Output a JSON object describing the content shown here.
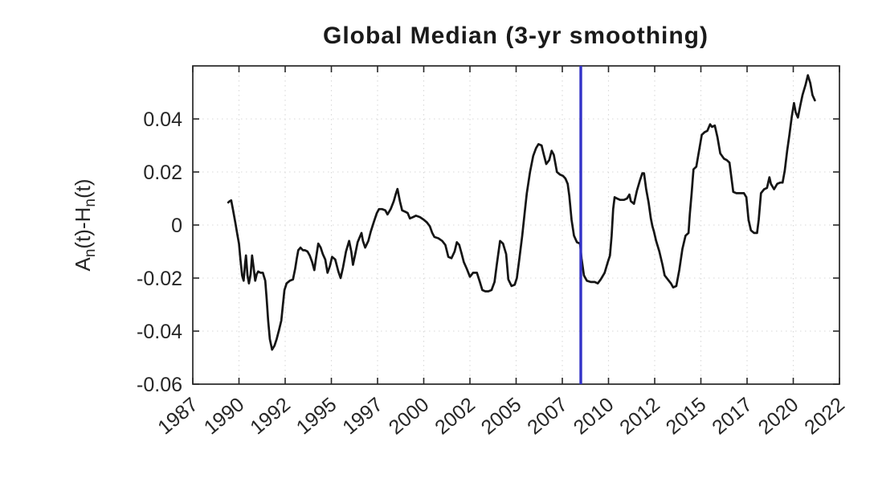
{
  "figure": {
    "background": "#ffffff"
  },
  "chart_data": {
    "type": "line",
    "title": "Global Median (3-yr smoothing)",
    "xlabel": "",
    "ylabel": "An(t)-Hn(t)",
    "ylabel_segments": [
      {
        "t": "A",
        "sub": false
      },
      {
        "t": "n",
        "sub": true
      },
      {
        "t": "(t)-H",
        "sub": false
      },
      {
        "t": "n",
        "sub": true
      },
      {
        "t": "(t)",
        "sub": false
      }
    ],
    "xlim": [
      1987,
      2022
    ],
    "ylim": [
      -0.06,
      0.06
    ],
    "grid": true,
    "x_ticks": {
      "values": [
        1987,
        1989.5,
        1992,
        1994.5,
        1997,
        1999.5,
        2002,
        2004.5,
        2007,
        2009.5,
        2012,
        2014.5,
        2017,
        2019.5,
        2022
      ],
      "labels": [
        "1987",
        "1990",
        "1992",
        "1995",
        "1997",
        "2000",
        "2002",
        "2005",
        "2007",
        "2010",
        "2012",
        "2015",
        "2017",
        "2020",
        "2022"
      ]
    },
    "y_ticks": {
      "values": [
        0.04,
        0.02,
        0,
        -0.02,
        -0.04,
        -0.06
      ],
      "labels": [
        "0.04",
        "0.02",
        "0",
        "-0.02",
        "-0.04",
        "-0.06"
      ]
    },
    "vline": {
      "x": 2008,
      "color": "#3232c8"
    },
    "series": [
      {
        "name": "global-median-3yr-smoothed",
        "color": "#151515",
        "points": [
          [
            1988.92,
            0.0085
          ],
          [
            1989.0,
            0.009
          ],
          [
            1989.08,
            0.0093
          ],
          [
            1989.17,
            0.006
          ],
          [
            1989.3,
            0.001
          ],
          [
            1989.42,
            -0.004
          ],
          [
            1989.5,
            -0.007
          ],
          [
            1989.58,
            -0.013
          ],
          [
            1989.67,
            -0.019
          ],
          [
            1989.75,
            -0.021
          ],
          [
            1989.83,
            -0.0145
          ],
          [
            1989.88,
            -0.0115
          ],
          [
            1989.96,
            -0.019
          ],
          [
            1990.04,
            -0.022
          ],
          [
            1990.13,
            -0.0185
          ],
          [
            1990.21,
            -0.0115
          ],
          [
            1990.29,
            -0.016
          ],
          [
            1990.38,
            -0.021
          ],
          [
            1990.46,
            -0.0185
          ],
          [
            1990.54,
            -0.0175
          ],
          [
            1990.67,
            -0.018
          ],
          [
            1990.79,
            -0.018
          ],
          [
            1990.92,
            -0.021
          ],
          [
            1991.0,
            -0.028
          ],
          [
            1991.08,
            -0.036
          ],
          [
            1991.17,
            -0.043
          ],
          [
            1991.29,
            -0.047
          ],
          [
            1991.42,
            -0.0455
          ],
          [
            1991.54,
            -0.043
          ],
          [
            1991.67,
            -0.0395
          ],
          [
            1991.79,
            -0.036
          ],
          [
            1991.88,
            -0.03
          ],
          [
            1991.96,
            -0.0245
          ],
          [
            1992.08,
            -0.022
          ],
          [
            1992.25,
            -0.021
          ],
          [
            1992.42,
            -0.0205
          ],
          [
            1992.54,
            -0.0165
          ],
          [
            1992.63,
            -0.0125
          ],
          [
            1992.71,
            -0.0095
          ],
          [
            1992.83,
            -0.0085
          ],
          [
            1992.96,
            -0.0095
          ],
          [
            1993.08,
            -0.0095
          ],
          [
            1993.21,
            -0.01
          ],
          [
            1993.33,
            -0.0115
          ],
          [
            1993.46,
            -0.014
          ],
          [
            1993.58,
            -0.017
          ],
          [
            1993.67,
            -0.0125
          ],
          [
            1993.79,
            -0.007
          ],
          [
            1993.92,
            -0.0085
          ],
          [
            1994.04,
            -0.011
          ],
          [
            1994.17,
            -0.013
          ],
          [
            1994.29,
            -0.018
          ],
          [
            1994.42,
            -0.0155
          ],
          [
            1994.54,
            -0.012
          ],
          [
            1994.71,
            -0.013
          ],
          [
            1994.88,
            -0.0175
          ],
          [
            1995.0,
            -0.02
          ],
          [
            1995.13,
            -0.016
          ],
          [
            1995.29,
            -0.01
          ],
          [
            1995.46,
            -0.006
          ],
          [
            1995.58,
            -0.01
          ],
          [
            1995.67,
            -0.015
          ],
          [
            1995.79,
            -0.011
          ],
          [
            1995.92,
            -0.0065
          ],
          [
            1996.04,
            -0.0045
          ],
          [
            1996.13,
            -0.003
          ],
          [
            1996.21,
            -0.006
          ],
          [
            1996.33,
            -0.0085
          ],
          [
            1996.5,
            -0.006
          ],
          [
            1996.63,
            -0.0025
          ],
          [
            1996.79,
            0.001
          ],
          [
            1996.96,
            0.0045
          ],
          [
            1997.08,
            0.006
          ],
          [
            1997.25,
            0.006
          ],
          [
            1997.42,
            0.0055
          ],
          [
            1997.54,
            0.004
          ],
          [
            1997.71,
            0.006
          ],
          [
            1997.88,
            0.009
          ],
          [
            1998.0,
            0.012
          ],
          [
            1998.08,
            0.0136
          ],
          [
            1998.21,
            0.009
          ],
          [
            1998.33,
            0.0055
          ],
          [
            1998.5,
            0.005
          ],
          [
            1998.63,
            0.0045
          ],
          [
            1998.75,
            0.0025
          ],
          [
            1998.92,
            0.003
          ],
          [
            1999.08,
            0.0035
          ],
          [
            1999.29,
            0.003
          ],
          [
            1999.5,
            0.002
          ],
          [
            1999.67,
            0.001
          ],
          [
            1999.83,
            -0.0005
          ],
          [
            1999.96,
            -0.003
          ],
          [
            2000.08,
            -0.0045
          ],
          [
            2000.29,
            -0.005
          ],
          [
            2000.5,
            -0.006
          ],
          [
            2000.67,
            -0.0075
          ],
          [
            2000.83,
            -0.012
          ],
          [
            2001.0,
            -0.0125
          ],
          [
            2001.17,
            -0.01
          ],
          [
            2001.29,
            -0.0065
          ],
          [
            2001.42,
            -0.0075
          ],
          [
            2001.54,
            -0.0105
          ],
          [
            2001.67,
            -0.014
          ],
          [
            2001.83,
            -0.0165
          ],
          [
            2002.0,
            -0.0195
          ],
          [
            2002.17,
            -0.018
          ],
          [
            2002.38,
            -0.018
          ],
          [
            2002.54,
            -0.0215
          ],
          [
            2002.67,
            -0.0245
          ],
          [
            2002.83,
            -0.025
          ],
          [
            2003.0,
            -0.025
          ],
          [
            2003.17,
            -0.0245
          ],
          [
            2003.33,
            -0.0215
          ],
          [
            2003.46,
            -0.0145
          ],
          [
            2003.63,
            -0.006
          ],
          [
            2003.79,
            -0.007
          ],
          [
            2003.96,
            -0.011
          ],
          [
            2004.08,
            -0.0205
          ],
          [
            2004.25,
            -0.023
          ],
          [
            2004.42,
            -0.0225
          ],
          [
            2004.54,
            -0.02
          ],
          [
            2004.67,
            -0.013
          ],
          [
            2004.83,
            -0.004
          ],
          [
            2004.96,
            0.0045
          ],
          [
            2005.08,
            0.012
          ],
          [
            2005.25,
            0.02
          ],
          [
            2005.42,
            0.026
          ],
          [
            2005.58,
            0.029
          ],
          [
            2005.71,
            0.0305
          ],
          [
            2005.88,
            0.03
          ],
          [
            2006.0,
            0.0265
          ],
          [
            2006.13,
            0.023
          ],
          [
            2006.29,
            0.0245
          ],
          [
            2006.42,
            0.028
          ],
          [
            2006.54,
            0.0265
          ],
          [
            2006.71,
            0.02
          ],
          [
            2006.88,
            0.019
          ],
          [
            2007.04,
            0.0185
          ],
          [
            2007.17,
            0.0175
          ],
          [
            2007.29,
            0.0155
          ],
          [
            2007.38,
            0.011
          ],
          [
            2007.5,
            0.002
          ],
          [
            2007.63,
            -0.004
          ],
          [
            2007.79,
            -0.0065
          ],
          [
            2007.96,
            -0.007
          ],
          [
            2008.04,
            -0.0125
          ],
          [
            2008.17,
            -0.019
          ],
          [
            2008.33,
            -0.021
          ],
          [
            2008.54,
            -0.0215
          ],
          [
            2008.75,
            -0.0215
          ],
          [
            2008.92,
            -0.022
          ],
          [
            2009.08,
            -0.0205
          ],
          [
            2009.29,
            -0.018
          ],
          [
            2009.46,
            -0.014
          ],
          [
            2009.58,
            -0.0115
          ],
          [
            2009.67,
            -0.004
          ],
          [
            2009.75,
            0.006
          ],
          [
            2009.83,
            0.0105
          ],
          [
            2009.96,
            0.01
          ],
          [
            2010.13,
            0.0095
          ],
          [
            2010.33,
            0.0095
          ],
          [
            2010.5,
            0.01
          ],
          [
            2010.63,
            0.0115
          ],
          [
            2010.71,
            0.009
          ],
          [
            2010.88,
            0.008
          ],
          [
            2011.04,
            0.013
          ],
          [
            2011.21,
            0.017
          ],
          [
            2011.33,
            0.0195
          ],
          [
            2011.42,
            0.0195
          ],
          [
            2011.54,
            0.0135
          ],
          [
            2011.67,
            0.0085
          ],
          [
            2011.79,
            0.0025
          ],
          [
            2011.88,
            -0.0005
          ],
          [
            2011.96,
            -0.0025
          ],
          [
            2012.08,
            -0.006
          ],
          [
            2012.25,
            -0.01
          ],
          [
            2012.42,
            -0.015
          ],
          [
            2012.54,
            -0.019
          ],
          [
            2012.71,
            -0.0205
          ],
          [
            2012.88,
            -0.022
          ],
          [
            2013.0,
            -0.0235
          ],
          [
            2013.17,
            -0.023
          ],
          [
            2013.33,
            -0.017
          ],
          [
            2013.5,
            -0.009
          ],
          [
            2013.67,
            -0.004
          ],
          [
            2013.83,
            -0.003
          ],
          [
            2013.9,
            0.004
          ],
          [
            2014.0,
            0.012
          ],
          [
            2014.1,
            0.021
          ],
          [
            2014.25,
            0.022
          ],
          [
            2014.4,
            0.028
          ],
          [
            2014.55,
            0.034
          ],
          [
            2014.7,
            0.035
          ],
          [
            2014.85,
            0.0355
          ],
          [
            2015.0,
            0.038
          ],
          [
            2015.1,
            0.037
          ],
          [
            2015.25,
            0.0375
          ],
          [
            2015.4,
            0.033
          ],
          [
            2015.55,
            0.027
          ],
          [
            2015.75,
            0.025
          ],
          [
            2015.9,
            0.0245
          ],
          [
            2016.05,
            0.0235
          ],
          [
            2016.25,
            0.0125
          ],
          [
            2016.42,
            0.012
          ],
          [
            2016.63,
            0.012
          ],
          [
            2016.83,
            0.012
          ],
          [
            2016.96,
            0.0105
          ],
          [
            2017.08,
            0.002
          ],
          [
            2017.21,
            -0.002
          ],
          [
            2017.38,
            -0.003
          ],
          [
            2017.54,
            -0.003
          ],
          [
            2017.63,
            0.002
          ],
          [
            2017.75,
            0.012
          ],
          [
            2017.92,
            0.0135
          ],
          [
            2018.08,
            0.014
          ],
          [
            2018.21,
            0.018
          ],
          [
            2018.29,
            0.0155
          ],
          [
            2018.46,
            0.0135
          ],
          [
            2018.63,
            0.0155
          ],
          [
            2018.79,
            0.016
          ],
          [
            2018.92,
            0.016
          ],
          [
            2019.04,
            0.0205
          ],
          [
            2019.17,
            0.028
          ],
          [
            2019.29,
            0.034
          ],
          [
            2019.42,
            0.041
          ],
          [
            2019.54,
            0.046
          ],
          [
            2019.63,
            0.0425
          ],
          [
            2019.75,
            0.0405
          ],
          [
            2019.88,
            0.045
          ],
          [
            2020.0,
            0.049
          ],
          [
            2020.17,
            0.053
          ],
          [
            2020.29,
            0.0565
          ],
          [
            2020.42,
            0.0535
          ],
          [
            2020.54,
            0.049
          ],
          [
            2020.67,
            0.047
          ]
        ]
      }
    ]
  },
  "colors": {
    "line": "#151515",
    "vline": "#3232c8",
    "axis": "#262626",
    "grid": "#d8d8d8",
    "text": "#262626",
    "background": "#ffffff"
  }
}
